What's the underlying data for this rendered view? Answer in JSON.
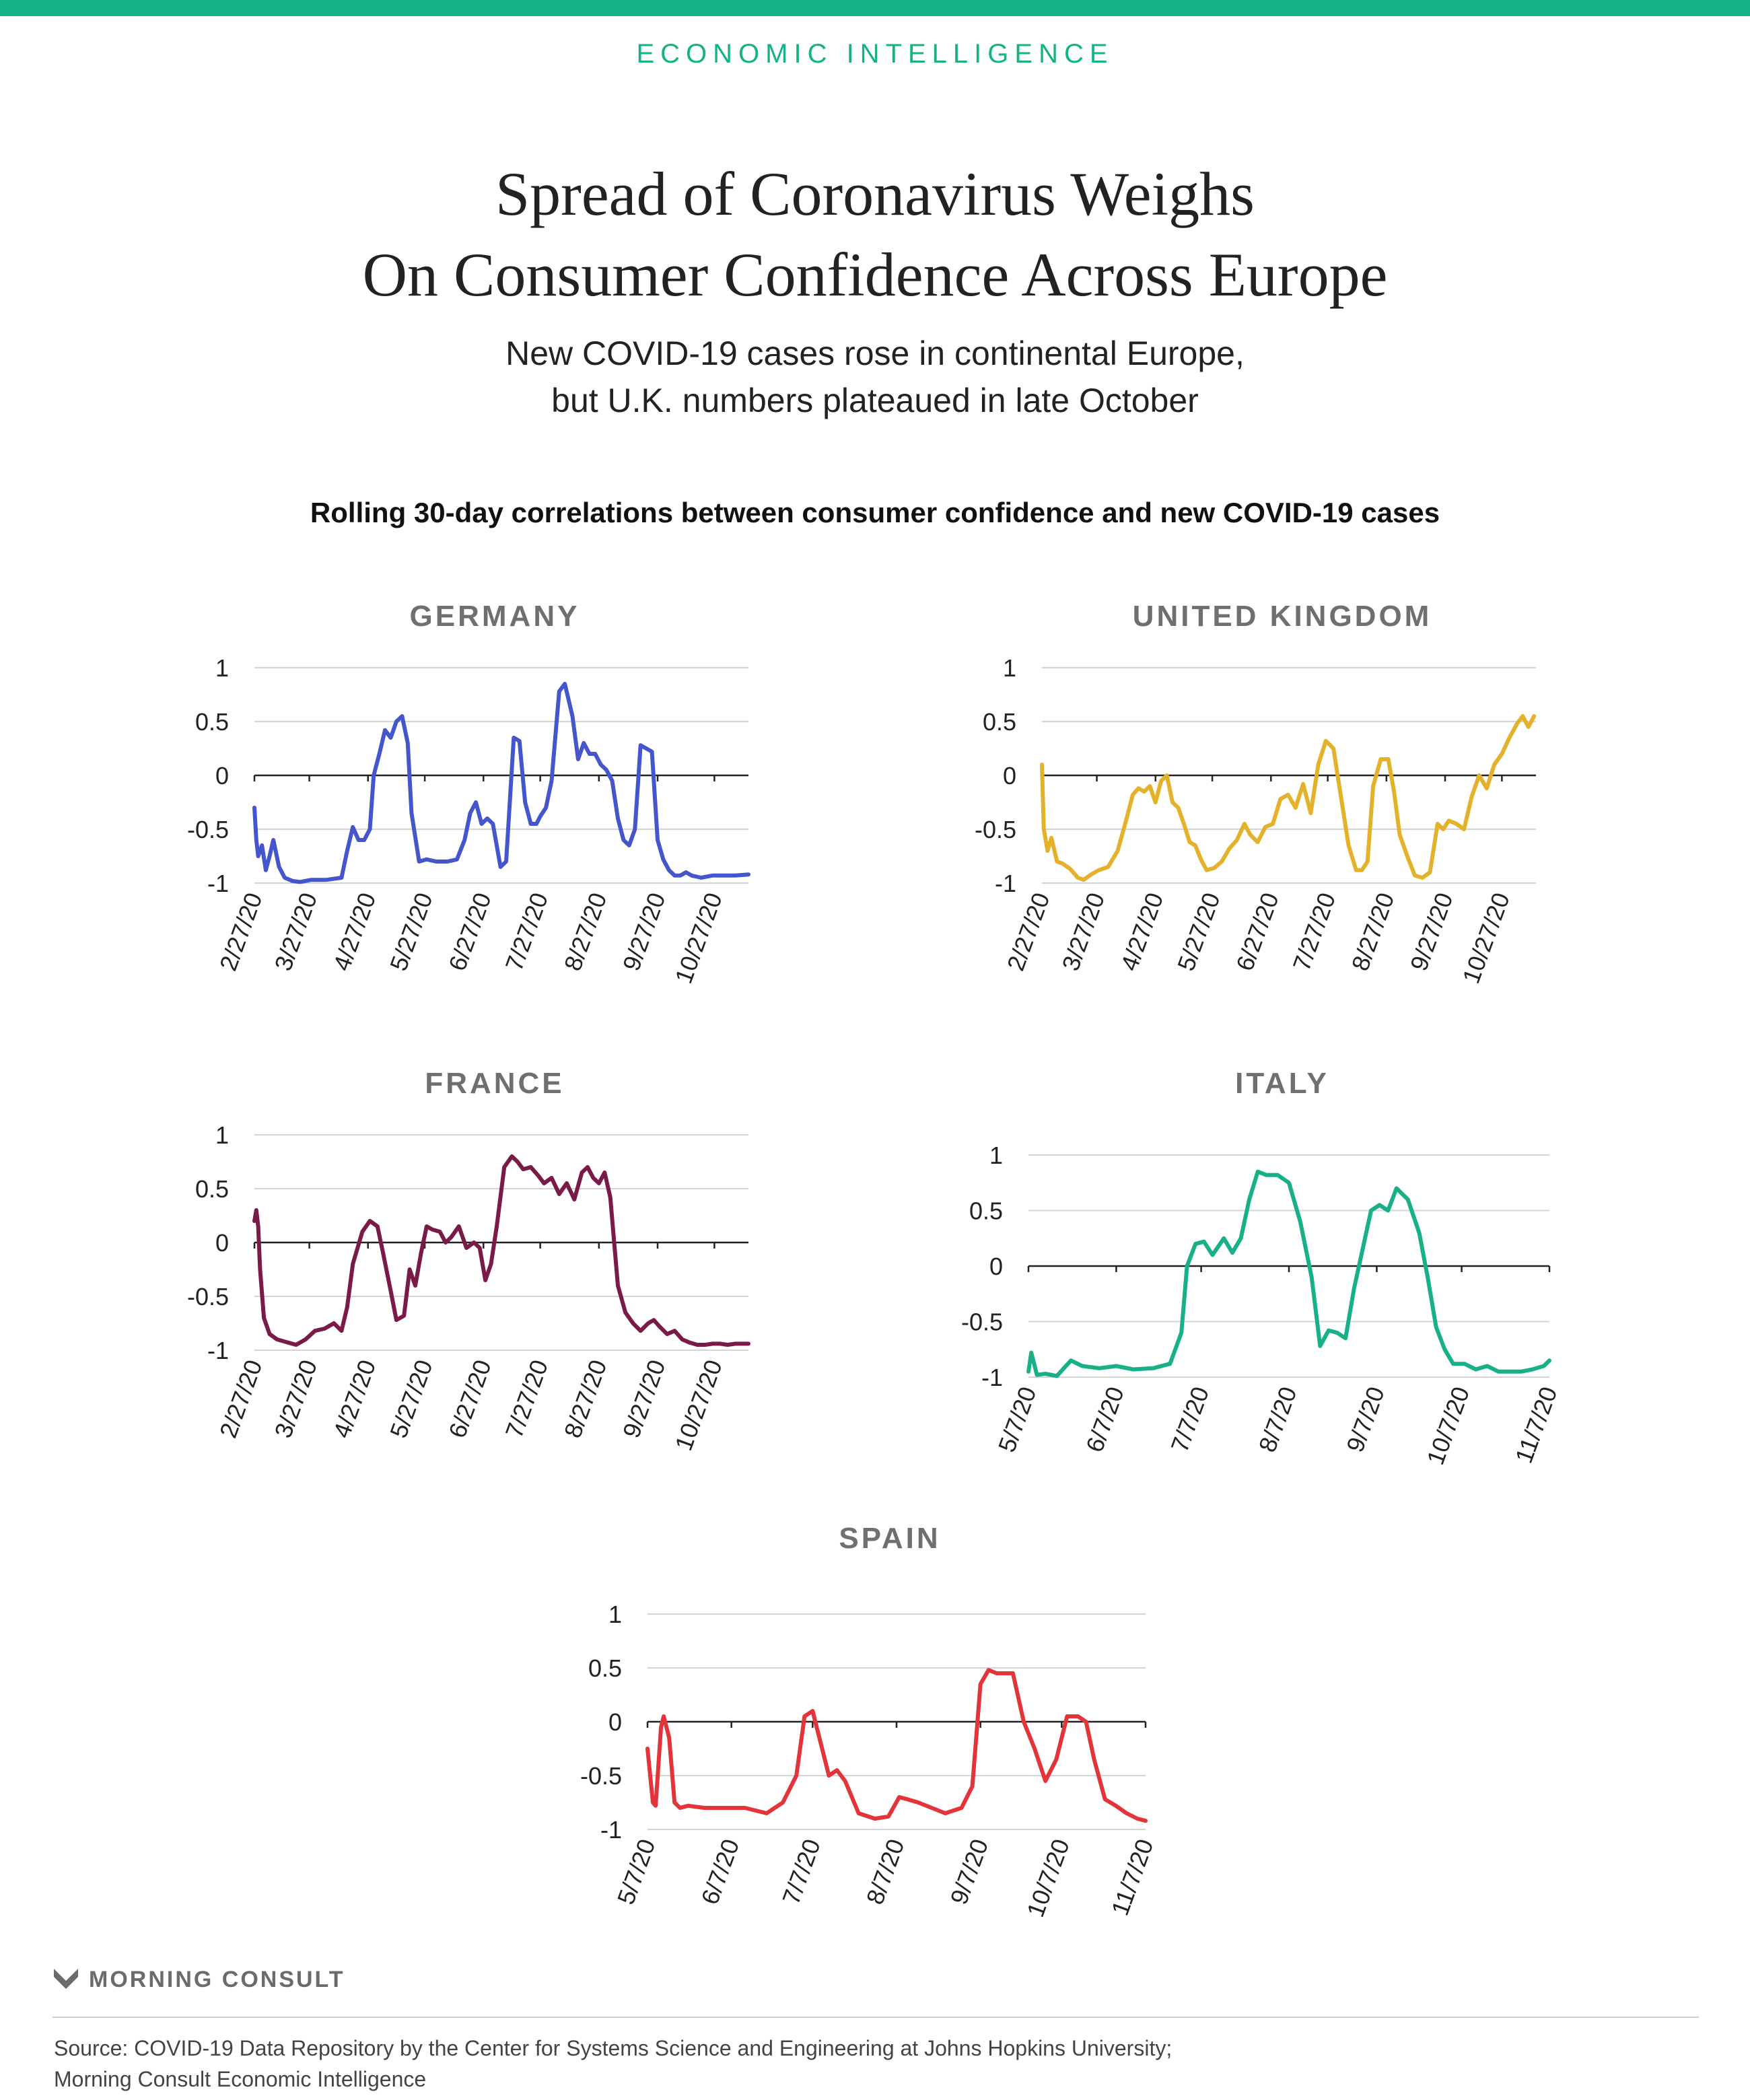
{
  "header": {
    "eyebrow": "ECONOMIC INTELLIGENCE",
    "title_line1": "Spread of Coronavirus Weighs",
    "title_line2": "On Consumer Confidence Across Europe",
    "subtitle_line1": "New COVID-19 cases rose in continental Europe,",
    "subtitle_line2": "but U.K. numbers plateaued in late October",
    "chart_heading": "Rolling 30-day correlations between consumer confidence and new COVID-19 cases"
  },
  "colors": {
    "accent": "#14b386",
    "germany": "#4555cc",
    "united_kingdom": "#e3b12a",
    "france": "#7a1a48",
    "italy": "#18b086",
    "spain": "#e3343a"
  },
  "chart_data": [
    {
      "type": "line",
      "title": "GERMANY",
      "color": "#4555cc",
      "ylim": [
        -1,
        1
      ],
      "yticks": [
        1,
        0.5,
        0,
        -0.5,
        -1
      ],
      "ytick_labels": [
        "1",
        "0.5",
        "0",
        "-0.5",
        "-1"
      ],
      "xticks": [
        "2/27/20",
        "3/27/20",
        "4/27/20",
        "5/27/20",
        "6/27/20",
        "7/27/20",
        "8/27/20",
        "9/27/20",
        "10/27/20"
      ],
      "x_start": "2020-02-27",
      "x_end": "2020-11-14",
      "series": [
        {
          "x": [
            "2020-02-27",
            "2020-02-28",
            "2020-02-29",
            "2020-03-02",
            "2020-03-04",
            "2020-03-06",
            "2020-03-08",
            "2020-03-11",
            "2020-03-14",
            "2020-03-18",
            "2020-03-22",
            "2020-03-28",
            "2020-04-05",
            "2020-04-13",
            "2020-04-16",
            "2020-04-19",
            "2020-04-22",
            "2020-04-25",
            "2020-04-28",
            "2020-04-30",
            "2020-05-03",
            "2020-05-06",
            "2020-05-09",
            "2020-05-12",
            "2020-05-15",
            "2020-05-18",
            "2020-05-20",
            "2020-05-24",
            "2020-05-28",
            "2020-06-02",
            "2020-06-08",
            "2020-06-13",
            "2020-06-17",
            "2020-06-20",
            "2020-06-23",
            "2020-06-26",
            "2020-06-29",
            "2020-07-02",
            "2020-07-06",
            "2020-07-09",
            "2020-07-13",
            "2020-07-16",
            "2020-07-19",
            "2020-07-22",
            "2020-07-25",
            "2020-07-27",
            "2020-07-30",
            "2020-08-02",
            "2020-08-06",
            "2020-08-09",
            "2020-08-13",
            "2020-08-16",
            "2020-08-19",
            "2020-08-22",
            "2020-08-25",
            "2020-08-28",
            "2020-08-31",
            "2020-09-03",
            "2020-09-06",
            "2020-09-09",
            "2020-09-12",
            "2020-09-15",
            "2020-09-18",
            "2020-09-21",
            "2020-09-24",
            "2020-09-27",
            "2020-09-30",
            "2020-10-03",
            "2020-10-06",
            "2020-10-09",
            "2020-10-12",
            "2020-10-15",
            "2020-10-20",
            "2020-10-26",
            "2020-11-01",
            "2020-11-07",
            "2020-11-14"
          ],
          "y": [
            -0.3,
            -0.6,
            -0.75,
            -0.65,
            -0.88,
            -0.75,
            -0.6,
            -0.85,
            -0.95,
            -0.98,
            -0.99,
            -0.97,
            -0.97,
            -0.95,
            -0.7,
            -0.48,
            -0.6,
            -0.6,
            -0.5,
            0.0,
            0.2,
            0.42,
            0.35,
            0.5,
            0.55,
            0.3,
            -0.35,
            -0.8,
            -0.78,
            -0.8,
            -0.8,
            -0.78,
            -0.6,
            -0.35,
            -0.25,
            -0.45,
            -0.4,
            -0.45,
            -0.85,
            -0.8,
            0.35,
            0.32,
            -0.25,
            -0.45,
            -0.45,
            -0.38,
            -0.3,
            -0.05,
            0.78,
            0.85,
            0.55,
            0.15,
            0.3,
            0.2,
            0.2,
            0.1,
            0.05,
            -0.05,
            -0.4,
            -0.6,
            -0.65,
            -0.5,
            0.28,
            0.25,
            0.22,
            -0.6,
            -0.78,
            -0.88,
            -0.93,
            -0.93,
            -0.9,
            -0.93,
            -0.95,
            -0.93,
            -0.93,
            -0.93,
            -0.92
          ]
        }
      ]
    },
    {
      "type": "line",
      "title": "UNITED KINGDOM",
      "color": "#e3b12a",
      "ylim": [
        -1,
        1
      ],
      "yticks": [
        1,
        0.5,
        0,
        -0.5,
        -1
      ],
      "ytick_labels": [
        "1",
        "0.5",
        "0",
        "-0.5",
        "-1"
      ],
      "xticks": [
        "2/27/20",
        "3/27/20",
        "4/27/20",
        "5/27/20",
        "6/27/20",
        "7/27/20",
        "8/27/20",
        "9/27/20",
        "10/27/20"
      ],
      "x_start": "2020-02-27",
      "x_end": "2020-11-14",
      "series": [
        {
          "x": [
            "2020-02-27",
            "2020-02-28",
            "2020-03-01",
            "2020-03-03",
            "2020-03-06",
            "2020-03-09",
            "2020-03-13",
            "2020-03-17",
            "2020-03-20",
            "2020-03-24",
            "2020-03-28",
            "2020-04-02",
            "2020-04-07",
            "2020-04-11",
            "2020-04-15",
            "2020-04-18",
            "2020-04-21",
            "2020-04-24",
            "2020-04-27",
            "2020-04-30",
            "2020-05-03",
            "2020-05-06",
            "2020-05-09",
            "2020-05-12",
            "2020-05-15",
            "2020-05-18",
            "2020-05-21",
            "2020-05-24",
            "2020-05-28",
            "2020-06-01",
            "2020-06-05",
            "2020-06-09",
            "2020-06-13",
            "2020-06-16",
            "2020-06-20",
            "2020-06-24",
            "2020-06-28",
            "2020-07-02",
            "2020-07-06",
            "2020-07-10",
            "2020-07-14",
            "2020-07-18",
            "2020-07-22",
            "2020-07-26",
            "2020-07-30",
            "2020-08-03",
            "2020-08-07",
            "2020-08-11",
            "2020-08-14",
            "2020-08-17",
            "2020-08-20",
            "2020-08-24",
            "2020-08-28",
            "2020-08-31",
            "2020-09-03",
            "2020-09-07",
            "2020-09-11",
            "2020-09-15",
            "2020-09-19",
            "2020-09-23",
            "2020-09-26",
            "2020-09-29",
            "2020-10-03",
            "2020-10-07",
            "2020-10-11",
            "2020-10-15",
            "2020-10-19",
            "2020-10-23",
            "2020-10-27",
            "2020-10-31",
            "2020-11-04",
            "2020-11-07",
            "2020-11-10",
            "2020-11-13"
          ],
          "y": [
            0.1,
            -0.5,
            -0.7,
            -0.58,
            -0.8,
            -0.82,
            -0.87,
            -0.95,
            -0.97,
            -0.92,
            -0.88,
            -0.85,
            -0.7,
            -0.45,
            -0.18,
            -0.12,
            -0.15,
            -0.1,
            -0.25,
            -0.05,
            0.0,
            -0.25,
            -0.3,
            -0.45,
            -0.62,
            -0.65,
            -0.78,
            -0.88,
            -0.86,
            -0.8,
            -0.68,
            -0.6,
            -0.45,
            -0.55,
            -0.62,
            -0.48,
            -0.45,
            -0.22,
            -0.18,
            -0.3,
            -0.08,
            -0.35,
            0.1,
            0.32,
            0.25,
            -0.2,
            -0.65,
            -0.88,
            -0.88,
            -0.8,
            -0.1,
            0.15,
            0.15,
            -0.15,
            -0.55,
            -0.75,
            -0.93,
            -0.95,
            -0.9,
            -0.45,
            -0.5,
            -0.42,
            -0.45,
            -0.5,
            -0.2,
            0.0,
            -0.12,
            0.1,
            0.2,
            0.35,
            0.48,
            0.55,
            0.45,
            0.55
          ]
        }
      ]
    },
    {
      "type": "line",
      "title": "FRANCE",
      "color": "#7a1a48",
      "ylim": [
        -1,
        1
      ],
      "yticks": [
        1,
        0.5,
        0,
        -0.5,
        -1
      ],
      "ytick_labels": [
        "1",
        "0.5",
        "0",
        "-0.5",
        "-1"
      ],
      "xticks": [
        "2/27/20",
        "3/27/20",
        "4/27/20",
        "5/27/20",
        "6/27/20",
        "7/27/20",
        "8/27/20",
        "9/27/20",
        "10/27/20"
      ],
      "x_start": "2020-02-27",
      "x_end": "2020-11-14",
      "series": [
        {
          "x": [
            "2020-02-27",
            "2020-02-28",
            "2020-02-29",
            "2020-03-01",
            "2020-03-03",
            "2020-03-06",
            "2020-03-10",
            "2020-03-14",
            "2020-03-20",
            "2020-03-25",
            "2020-03-30",
            "2020-04-04",
            "2020-04-09",
            "2020-04-13",
            "2020-04-16",
            "2020-04-19",
            "2020-04-24",
            "2020-04-28",
            "2020-05-02",
            "2020-05-05",
            "2020-05-09",
            "2020-05-12",
            "2020-05-16",
            "2020-05-19",
            "2020-05-22",
            "2020-05-25",
            "2020-05-28",
            "2020-05-31",
            "2020-06-04",
            "2020-06-07",
            "2020-06-10",
            "2020-06-14",
            "2020-06-18",
            "2020-06-22",
            "2020-06-25",
            "2020-06-28",
            "2020-07-01",
            "2020-07-04",
            "2020-07-08",
            "2020-07-12",
            "2020-07-15",
            "2020-07-18",
            "2020-07-22",
            "2020-07-26",
            "2020-07-29",
            "2020-08-02",
            "2020-08-06",
            "2020-08-10",
            "2020-08-14",
            "2020-08-18",
            "2020-08-21",
            "2020-08-24",
            "2020-08-27",
            "2020-08-30",
            "2020-09-02",
            "2020-09-06",
            "2020-09-10",
            "2020-09-14",
            "2020-09-18",
            "2020-09-22",
            "2020-09-25",
            "2020-09-28",
            "2020-10-02",
            "2020-10-06",
            "2020-10-10",
            "2020-10-14",
            "2020-10-18",
            "2020-10-22",
            "2020-10-26",
            "2020-10-30",
            "2020-11-03",
            "2020-11-07",
            "2020-11-14"
          ],
          "y": [
            0.2,
            0.3,
            0.15,
            -0.25,
            -0.7,
            -0.85,
            -0.9,
            -0.92,
            -0.95,
            -0.9,
            -0.82,
            -0.8,
            -0.75,
            -0.82,
            -0.6,
            -0.2,
            0.1,
            0.2,
            0.15,
            -0.1,
            -0.45,
            -0.72,
            -0.68,
            -0.25,
            -0.4,
            -0.1,
            0.15,
            0.12,
            0.1,
            0.0,
            0.05,
            0.15,
            -0.05,
            0.0,
            -0.05,
            -0.35,
            -0.2,
            0.15,
            0.7,
            0.8,
            0.75,
            0.68,
            0.7,
            0.62,
            0.55,
            0.6,
            0.45,
            0.55,
            0.4,
            0.65,
            0.7,
            0.6,
            0.55,
            0.65,
            0.42,
            -0.4,
            -0.65,
            -0.75,
            -0.82,
            -0.75,
            -0.72,
            -0.78,
            -0.85,
            -0.82,
            -0.9,
            -0.93,
            -0.95,
            -0.95,
            -0.94,
            -0.94,
            -0.95,
            -0.94,
            -0.94
          ]
        }
      ]
    },
    {
      "type": "line",
      "title": "ITALY",
      "color": "#18b086",
      "ylim": [
        -1,
        1
      ],
      "yticks": [
        1,
        0.5,
        0,
        -0.5,
        -1
      ],
      "ytick_labels": [
        "1",
        "0.5",
        "0",
        "-0.5",
        "-1"
      ],
      "xticks": [
        "5/7/20",
        "6/7/20",
        "7/7/20",
        "8/7/20",
        "9/7/20",
        "10/7/20",
        "11/7/20"
      ],
      "x_start": "2020-05-07",
      "x_end": "2020-11-07",
      "series": [
        {
          "x": [
            "2020-05-07",
            "2020-05-08",
            "2020-05-10",
            "2020-05-13",
            "2020-05-17",
            "2020-05-22",
            "2020-05-26",
            "2020-06-01",
            "2020-06-07",
            "2020-06-13",
            "2020-06-20",
            "2020-06-26",
            "2020-06-30",
            "2020-07-02",
            "2020-07-05",
            "2020-07-08",
            "2020-07-11",
            "2020-07-15",
            "2020-07-18",
            "2020-07-21",
            "2020-07-24",
            "2020-07-27",
            "2020-07-30",
            "2020-08-03",
            "2020-08-07",
            "2020-08-11",
            "2020-08-15",
            "2020-08-18",
            "2020-08-21",
            "2020-08-24",
            "2020-08-27",
            "2020-08-30",
            "2020-09-02",
            "2020-09-05",
            "2020-09-08",
            "2020-09-11",
            "2020-09-14",
            "2020-09-18",
            "2020-09-22",
            "2020-09-25",
            "2020-09-28",
            "2020-10-01",
            "2020-10-04",
            "2020-10-08",
            "2020-10-12",
            "2020-10-16",
            "2020-10-20",
            "2020-10-24",
            "2020-10-28",
            "2020-11-01",
            "2020-11-05",
            "2020-11-07"
          ],
          "y": [
            -0.95,
            -0.78,
            -0.98,
            -0.97,
            -0.99,
            -0.85,
            -0.9,
            -0.92,
            -0.9,
            -0.93,
            -0.92,
            -0.88,
            -0.6,
            0.0,
            0.2,
            0.22,
            0.1,
            0.25,
            0.12,
            0.25,
            0.6,
            0.85,
            0.82,
            0.82,
            0.75,
            0.4,
            -0.1,
            -0.72,
            -0.58,
            -0.6,
            -0.65,
            -0.2,
            0.15,
            0.5,
            0.55,
            0.5,
            0.7,
            0.6,
            0.3,
            -0.1,
            -0.55,
            -0.75,
            -0.88,
            -0.88,
            -0.93,
            -0.9,
            -0.95,
            -0.95,
            -0.95,
            -0.93,
            -0.9,
            -0.85
          ]
        }
      ]
    },
    {
      "type": "line",
      "title": "SPAIN",
      "color": "#e3343a",
      "ylim": [
        -1,
        1
      ],
      "yticks": [
        1,
        0.5,
        0,
        -0.5,
        -1
      ],
      "ytick_labels": [
        "1",
        "0.5",
        "0",
        "-0.5",
        "-1"
      ],
      "xticks": [
        "5/7/20",
        "6/7/20",
        "7/7/20",
        "8/7/20",
        "9/7/20",
        "10/7/20",
        "11/7/20"
      ],
      "x_start": "2020-05-07",
      "x_end": "2020-11-07",
      "series": [
        {
          "x": [
            "2020-05-07",
            "2020-05-09",
            "2020-05-10",
            "2020-05-12",
            "2020-05-13",
            "2020-05-15",
            "2020-05-17",
            "2020-05-19",
            "2020-05-22",
            "2020-05-28",
            "2020-06-05",
            "2020-06-12",
            "2020-06-20",
            "2020-06-26",
            "2020-07-01",
            "2020-07-04",
            "2020-07-07",
            "2020-07-10",
            "2020-07-13",
            "2020-07-16",
            "2020-07-19",
            "2020-07-24",
            "2020-07-30",
            "2020-08-04",
            "2020-08-08",
            "2020-08-11",
            "2020-08-15",
            "2020-08-20",
            "2020-08-25",
            "2020-08-31",
            "2020-09-04",
            "2020-09-07",
            "2020-09-10",
            "2020-09-13",
            "2020-09-16",
            "2020-09-19",
            "2020-09-23",
            "2020-09-27",
            "2020-10-01",
            "2020-10-05",
            "2020-10-09",
            "2020-10-13",
            "2020-10-16",
            "2020-10-19",
            "2020-10-23",
            "2020-10-27",
            "2020-10-31",
            "2020-11-04",
            "2020-11-07"
          ],
          "y": [
            -0.25,
            -0.75,
            -0.78,
            -0.05,
            0.05,
            -0.15,
            -0.75,
            -0.8,
            -0.78,
            -0.8,
            -0.8,
            -0.8,
            -0.85,
            -0.75,
            -0.5,
            0.05,
            0.1,
            -0.2,
            -0.5,
            -0.45,
            -0.55,
            -0.85,
            -0.9,
            -0.88,
            -0.7,
            -0.72,
            -0.75,
            -0.8,
            -0.85,
            -0.8,
            -0.6,
            0.35,
            0.48,
            0.45,
            0.45,
            0.45,
            0.0,
            -0.25,
            -0.55,
            -0.35,
            0.05,
            0.05,
            0.0,
            -0.35,
            -0.72,
            -0.78,
            -0.85,
            -0.9,
            -0.92
          ]
        }
      ]
    }
  ],
  "footer": {
    "logo_text": "MORNING CONSULT",
    "source_line1": "Source: COVID-19 Data Repository by the Center for Systems Science and Engineering at Johns Hopkins University;",
    "source_line2": "Morning Consult Economic Intelligence"
  }
}
